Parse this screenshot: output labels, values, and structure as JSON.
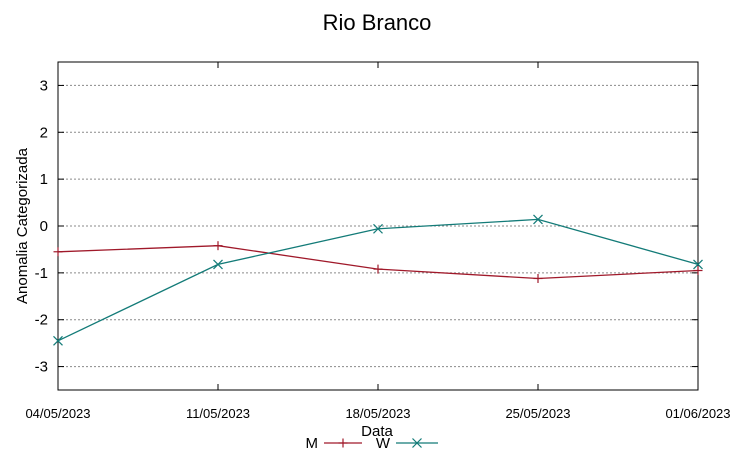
{
  "chart_data": {
    "type": "line",
    "title": "Rio Branco",
    "xlabel": "Data",
    "ylabel": "Anomalia Categorizada",
    "categories": [
      "04/05/2023",
      "11/05/2023",
      "18/05/2023",
      "25/05/2023",
      "01/06/2023"
    ],
    "yticks": [
      -3,
      -2,
      -1,
      0,
      1,
      2,
      3
    ],
    "ylim": [
      -3.5,
      3.5
    ],
    "grid": true,
    "legend_position": "bottom-center",
    "series": [
      {
        "name": "M",
        "values": [
          -0.55,
          -0.42,
          -0.92,
          -1.12,
          -0.95
        ],
        "color": "#a0192a",
        "marker": "plus"
      },
      {
        "name": "W",
        "values": [
          -2.45,
          -0.82,
          -0.06,
          0.14,
          -0.82
        ],
        "color": "#137b78",
        "marker": "x"
      }
    ]
  }
}
